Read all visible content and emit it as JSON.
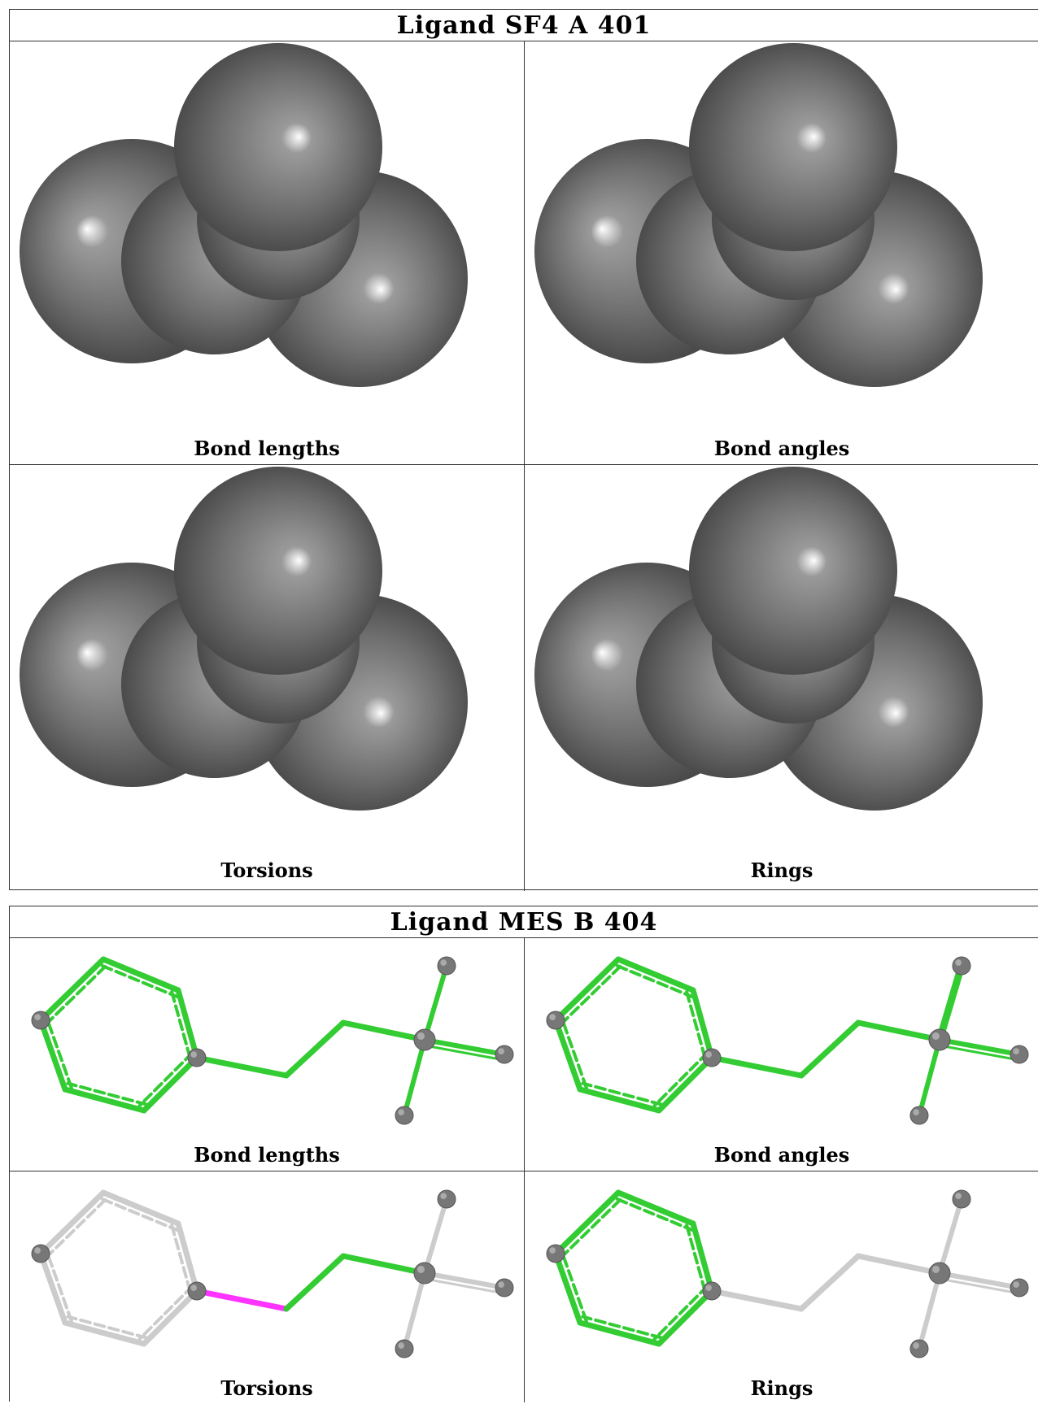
{
  "panels": [
    {
      "title": "Ligand SF4 A 401",
      "captions": [
        "Bond lengths",
        "Bond angles",
        "Torsions",
        "Rings"
      ]
    },
    {
      "title": "Ligand MES B 404",
      "captions": [
        "Bond lengths",
        "Bond angles",
        "Torsions",
        "Rings"
      ]
    }
  ],
  "colors": {
    "atom_gray": "#6e6e6e",
    "bond_ok": "#33cc33",
    "bond_outlier": "#ff33ff",
    "bond_neutral": "#cccccc"
  }
}
